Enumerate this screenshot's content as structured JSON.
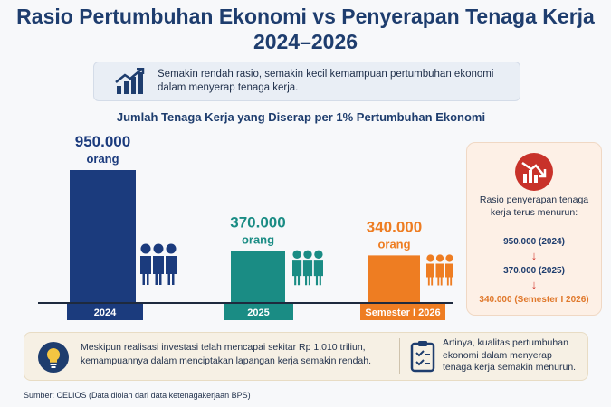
{
  "header": {
    "title_line1": "Rasio Pertumbuhan Ekonomi vs Penyerapan Tenaga Kerja",
    "title_line2": "2024–2026"
  },
  "note": {
    "line1": "Semakin rendah rasio, semakin kecil kemampuan pertumbuhan ekonomi",
    "line2": "dalam menyerap tenaga kerja.",
    "icon": "bar-chart-growth-icon"
  },
  "chart_data": {
    "type": "bar",
    "title": "Jumlah Tenaga Kerja yang Diserap per 1% Pertumbuhan Ekonomi",
    "categories": [
      "2024",
      "2025",
      "Semester I 2026"
    ],
    "values": [
      950000,
      370000,
      340000
    ],
    "value_labels": [
      "950.000",
      "370.000",
      "340.000"
    ],
    "unit_label": "orang",
    "colors": [
      "#1b3b7d",
      "#1a8c84",
      "#ee7d22"
    ],
    "ylim": [
      0,
      950000
    ]
  },
  "callout": {
    "icon": "declining-chart-icon",
    "description": "Rasio penyerapan tenaga kerja terus menurun:",
    "v1": "950.000 (2024)",
    "v2": "370.000 (2025)",
    "v3": "340.000 (Semester I 2026)",
    "arrow": "↓"
  },
  "bottom": {
    "left_text": "Meskipun realisasi investasi telah mencapai sekitar Rp 1.010 triliun, kemampuannya dalam menciptakan lapangan kerja semakin rendah.",
    "right_text": "Artinya, kualitas pertumbuhan ekonomi dalam menyerap tenaga kerja semakin menurun.",
    "left_icon": "lightbulb-icon",
    "right_icon": "clipboard-check-icon"
  },
  "source": "Sumber: CELIOS (Data diolah dari data ketenagakerjaan BPS)"
}
